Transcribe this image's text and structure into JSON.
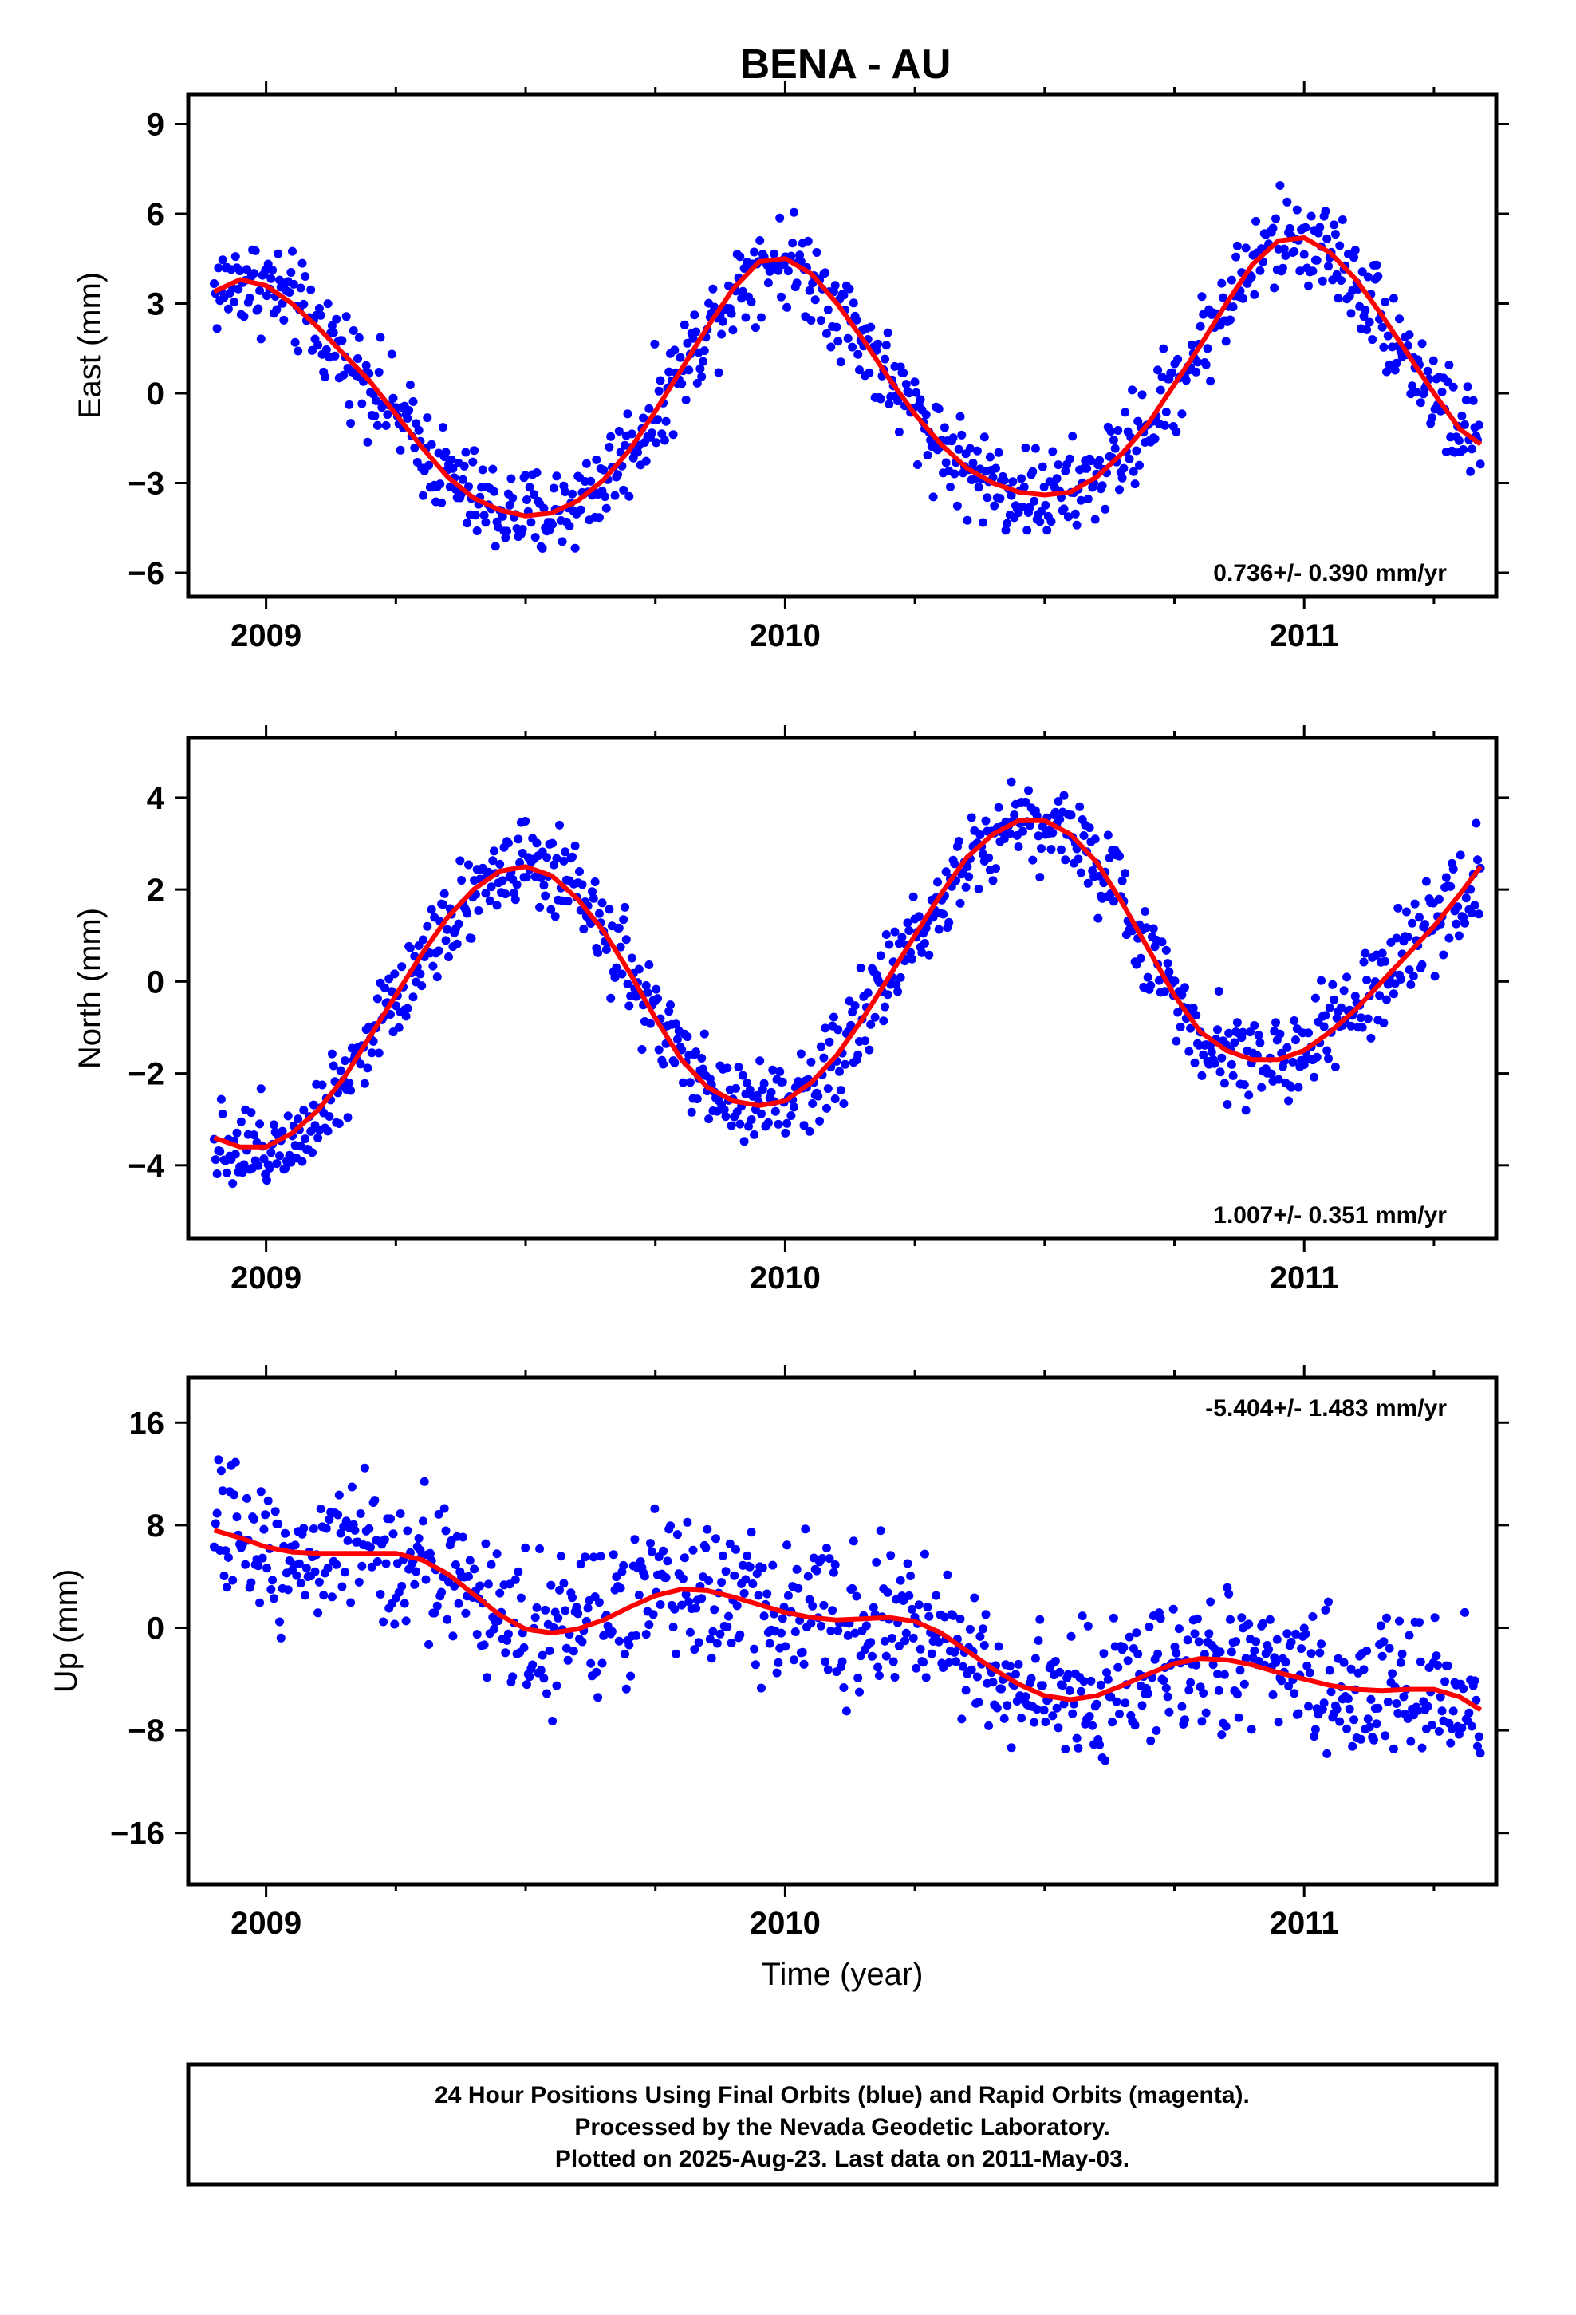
{
  "title": "BENA - AU",
  "footer": {
    "lines": [
      "24 Hour Positions Using Final Orbits (blue) and Rapid Orbits (magenta).",
      "Processed by the Nevada Geodetic Laboratory.",
      "Plotted on 2025-Aug-23. Last data on 2011-May-03."
    ]
  },
  "colors": {
    "points": "#0000ff",
    "fit": "#ff0000",
    "frame": "#000000"
  },
  "chart_data": [
    {
      "type": "scatter",
      "ylabel": "East (mm)",
      "xlabel": "",
      "rate_label": "0.736+/- 0.390 mm/yr",
      "rate_position": "bottom-right",
      "xlim": [
        2008.85,
        2011.37
      ],
      "ylim": [
        -6.8,
        10.0
      ],
      "xticks": [
        2009,
        2010,
        2011
      ],
      "yticks": [
        -6,
        -3,
        0,
        3,
        6,
        9
      ],
      "grid": false,
      "start": 2008.9,
      "end": 2011.34,
      "noise": 1.2,
      "series": [
        {
          "role": "daily-positions",
          "color": "#0000ff"
        },
        {
          "role": "trend-fit",
          "color": "#ff0000",
          "points": [
            [
              2008.9,
              3.4
            ],
            [
              2008.95,
              3.8
            ],
            [
              2009.0,
              3.6
            ],
            [
              2009.05,
              3.0
            ],
            [
              2009.1,
              2.2
            ],
            [
              2009.15,
              1.3
            ],
            [
              2009.2,
              0.4
            ],
            [
              2009.25,
              -0.7
            ],
            [
              2009.3,
              -1.8
            ],
            [
              2009.35,
              -2.8
            ],
            [
              2009.4,
              -3.5
            ],
            [
              2009.45,
              -3.9
            ],
            [
              2009.5,
              -4.1
            ],
            [
              2009.55,
              -4.0
            ],
            [
              2009.6,
              -3.6
            ],
            [
              2009.65,
              -2.9
            ],
            [
              2009.7,
              -1.9
            ],
            [
              2009.75,
              -0.6
            ],
            [
              2009.8,
              0.8
            ],
            [
              2009.85,
              2.2
            ],
            [
              2009.9,
              3.5
            ],
            [
              2009.95,
              4.4
            ],
            [
              2010.0,
              4.5
            ],
            [
              2010.05,
              4.0
            ],
            [
              2010.1,
              3.0
            ],
            [
              2010.15,
              1.8
            ],
            [
              2010.2,
              0.5
            ],
            [
              2010.25,
              -0.7
            ],
            [
              2010.3,
              -1.7
            ],
            [
              2010.35,
              -2.5
            ],
            [
              2010.4,
              -3.0
            ],
            [
              2010.45,
              -3.3
            ],
            [
              2010.5,
              -3.4
            ],
            [
              2010.55,
              -3.3
            ],
            [
              2010.6,
              -2.8
            ],
            [
              2010.65,
              -2.0
            ],
            [
              2010.7,
              -1.0
            ],
            [
              2010.75,
              0.3
            ],
            [
              2010.8,
              1.6
            ],
            [
              2010.85,
              3.0
            ],
            [
              2010.9,
              4.3
            ],
            [
              2010.95,
              5.1
            ],
            [
              2011.0,
              5.2
            ],
            [
              2011.05,
              4.7
            ],
            [
              2011.1,
              3.8
            ],
            [
              2011.15,
              2.6
            ],
            [
              2011.2,
              1.3
            ],
            [
              2011.25,
              0.0
            ],
            [
              2011.3,
              -1.2
            ],
            [
              2011.34,
              -1.7
            ]
          ]
        }
      ]
    },
    {
      "type": "scatter",
      "ylabel": "North (mm)",
      "xlabel": "",
      "rate_label": "1.007+/- 0.351 mm/yr",
      "rate_position": "bottom-right",
      "xlim": [
        2008.85,
        2011.37
      ],
      "ylim": [
        -5.6,
        5.3
      ],
      "xticks": [
        2009,
        2010,
        2011
      ],
      "yticks": [
        -4,
        -2,
        0,
        2,
        4
      ],
      "grid": false,
      "start": 2008.9,
      "end": 2011.34,
      "noise": 0.75,
      "series": [
        {
          "role": "daily-positions",
          "color": "#0000ff"
        },
        {
          "role": "trend-fit",
          "color": "#ff0000",
          "points": [
            [
              2008.9,
              -3.4
            ],
            [
              2008.95,
              -3.6
            ],
            [
              2009.0,
              -3.6
            ],
            [
              2009.05,
              -3.3
            ],
            [
              2009.1,
              -2.8
            ],
            [
              2009.15,
              -2.1
            ],
            [
              2009.2,
              -1.2
            ],
            [
              2009.25,
              -0.3
            ],
            [
              2009.3,
              0.6
            ],
            [
              2009.35,
              1.4
            ],
            [
              2009.4,
              2.0
            ],
            [
              2009.45,
              2.4
            ],
            [
              2009.5,
              2.5
            ],
            [
              2009.55,
              2.3
            ],
            [
              2009.6,
              1.8
            ],
            [
              2009.65,
              1.1
            ],
            [
              2009.7,
              0.2
            ],
            [
              2009.75,
              -0.8
            ],
            [
              2009.8,
              -1.7
            ],
            [
              2009.85,
              -2.3
            ],
            [
              2009.9,
              -2.6
            ],
            [
              2009.95,
              -2.7
            ],
            [
              2010.0,
              -2.6
            ],
            [
              2010.05,
              -2.2
            ],
            [
              2010.1,
              -1.6
            ],
            [
              2010.15,
              -0.8
            ],
            [
              2010.2,
              0.1
            ],
            [
              2010.25,
              1.0
            ],
            [
              2010.3,
              1.9
            ],
            [
              2010.35,
              2.7
            ],
            [
              2010.4,
              3.2
            ],
            [
              2010.45,
              3.5
            ],
            [
              2010.5,
              3.5
            ],
            [
              2010.55,
              3.2
            ],
            [
              2010.6,
              2.6
            ],
            [
              2010.65,
              1.7
            ],
            [
              2010.7,
              0.7
            ],
            [
              2010.75,
              -0.3
            ],
            [
              2010.8,
              -1.1
            ],
            [
              2010.85,
              -1.5
            ],
            [
              2010.9,
              -1.7
            ],
            [
              2010.95,
              -1.7
            ],
            [
              2011.0,
              -1.5
            ],
            [
              2011.05,
              -1.1
            ],
            [
              2011.1,
              -0.6
            ],
            [
              2011.15,
              0.0
            ],
            [
              2011.2,
              0.6
            ],
            [
              2011.25,
              1.2
            ],
            [
              2011.3,
              1.9
            ],
            [
              2011.34,
              2.5
            ]
          ]
        }
      ]
    },
    {
      "type": "scatter",
      "ylabel": "Up (mm)",
      "xlabel": "Time (year)",
      "rate_label": "-5.404+/- 1.483 mm/yr",
      "rate_position": "top-right",
      "xlim": [
        2008.85,
        2011.37
      ],
      "ylim": [
        -20,
        19.5
      ],
      "xticks": [
        2009,
        2010,
        2011
      ],
      "yticks": [
        -16,
        -8,
        0,
        8,
        16
      ],
      "grid": false,
      "start": 2008.9,
      "end": 2011.34,
      "noise": 4.2,
      "series": [
        {
          "role": "daily-positions",
          "color": "#0000ff"
        },
        {
          "role": "trend-fit",
          "color": "#ff0000",
          "points": [
            [
              2008.9,
              7.6
            ],
            [
              2008.95,
              7.0
            ],
            [
              2009.0,
              6.3
            ],
            [
              2009.05,
              5.9
            ],
            [
              2009.1,
              5.8
            ],
            [
              2009.15,
              5.8
            ],
            [
              2009.2,
              5.8
            ],
            [
              2009.25,
              5.8
            ],
            [
              2009.3,
              5.3
            ],
            [
              2009.35,
              4.2
            ],
            [
              2009.4,
              2.6
            ],
            [
              2009.45,
              1.0
            ],
            [
              2009.5,
              -0.1
            ],
            [
              2009.55,
              -0.4
            ],
            [
              2009.6,
              -0.1
            ],
            [
              2009.65,
              0.6
            ],
            [
              2009.7,
              1.6
            ],
            [
              2009.75,
              2.5
            ],
            [
              2009.8,
              3.0
            ],
            [
              2009.85,
              2.9
            ],
            [
              2009.9,
              2.4
            ],
            [
              2009.95,
              1.8
            ],
            [
              2010.0,
              1.2
            ],
            [
              2010.05,
              0.8
            ],
            [
              2010.1,
              0.6
            ],
            [
              2010.15,
              0.7
            ],
            [
              2010.2,
              0.8
            ],
            [
              2010.25,
              0.5
            ],
            [
              2010.3,
              -0.4
            ],
            [
              2010.35,
              -1.8
            ],
            [
              2010.4,
              -3.2
            ],
            [
              2010.45,
              -4.4
            ],
            [
              2010.5,
              -5.3
            ],
            [
              2010.55,
              -5.6
            ],
            [
              2010.6,
              -5.3
            ],
            [
              2010.65,
              -4.5
            ],
            [
              2010.7,
              -3.6
            ],
            [
              2010.75,
              -2.8
            ],
            [
              2010.8,
              -2.4
            ],
            [
              2010.85,
              -2.5
            ],
            [
              2010.9,
              -2.9
            ],
            [
              2010.95,
              -3.5
            ],
            [
              2011.0,
              -4.0
            ],
            [
              2011.05,
              -4.5
            ],
            [
              2011.1,
              -4.8
            ],
            [
              2011.15,
              -4.9
            ],
            [
              2011.2,
              -4.8
            ],
            [
              2011.25,
              -4.8
            ],
            [
              2011.3,
              -5.4
            ],
            [
              2011.34,
              -6.4
            ]
          ]
        }
      ]
    }
  ]
}
